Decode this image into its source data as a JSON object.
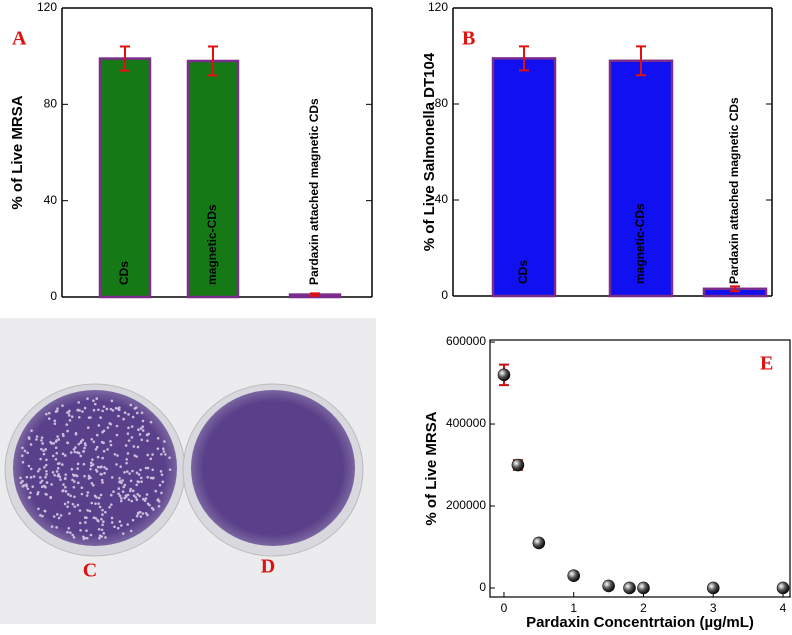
{
  "chart_data": [
    {
      "type": "bar",
      "panel_label": "A",
      "y_label": "% of Live MRSA",
      "categories": [
        "CDs",
        "magnetic-CDs",
        "Pardaxin attached magnetic CDs"
      ],
      "values": [
        99,
        98,
        1
      ],
      "errors": [
        5,
        6,
        0.5
      ],
      "color": "#157a15",
      "edge_color": "#7b2d8b",
      "error_color": "#e01010",
      "ylim": [
        0,
        120
      ],
      "yticks": [
        0,
        40,
        80,
        120
      ]
    },
    {
      "type": "bar",
      "panel_label": "B",
      "y_label": "% of Live Salmonella DT104",
      "categories": [
        "CDs",
        "magnetic-CDs",
        "Pardaxin attached magnetic CDs"
      ],
      "values": [
        99,
        98,
        3
      ],
      "errors": [
        5,
        6,
        1
      ],
      "color": "#1010f0",
      "edge_color": "#7b2d8b",
      "error_color": "#e01010",
      "ylim": [
        0,
        120
      ],
      "yticks": [
        0,
        40,
        80,
        120
      ]
    },
    {
      "type": "scatter",
      "panel_label": "E",
      "y_label": "% of Live MRSA",
      "x_label": "Pardaxin Concentrtaion (µg/mL)",
      "x": [
        0,
        0.2,
        0.5,
        1,
        1.5,
        1.8,
        2,
        3,
        4
      ],
      "values": [
        520000,
        300000,
        110000,
        30000,
        5000,
        0,
        0,
        0,
        0
      ],
      "errors": [
        25000,
        12000,
        8000,
        8000,
        3000,
        0,
        0,
        0,
        0
      ],
      "color": "#111111",
      "error_color": "#c01010",
      "xlim": [
        -0.2,
        4.1
      ],
      "xticks": [
        0,
        1,
        2,
        3,
        4
      ],
      "ylim": [
        -22000,
        605000
      ],
      "yticks": [
        0,
        200000,
        400000,
        600000
      ]
    }
  ],
  "photo": {
    "labels": [
      "C",
      "D"
    ]
  }
}
